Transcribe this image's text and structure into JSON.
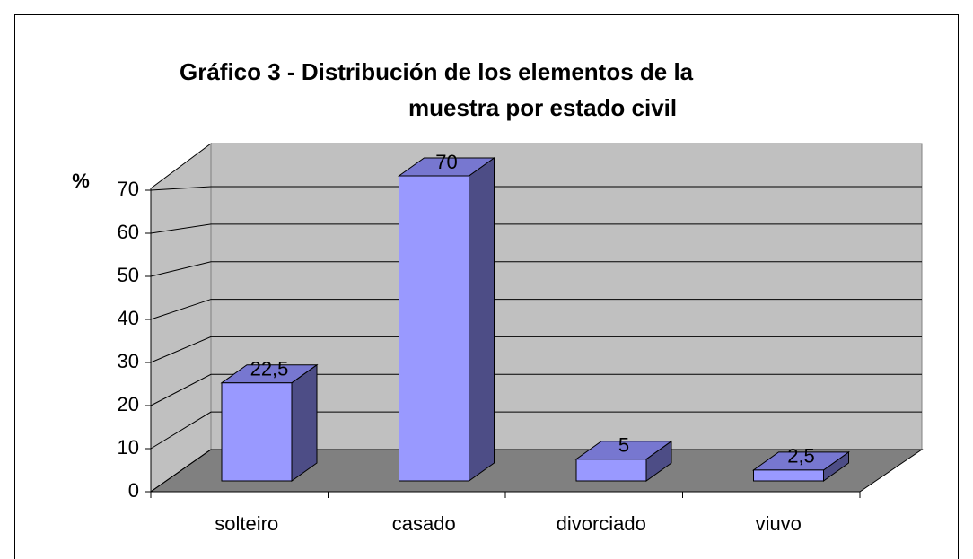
{
  "chart_data": {
    "type": "bar3d",
    "title": [
      "Gráfico  3 - Distribución de los elementos de la",
      "muestra por estado civil"
    ],
    "y_label": "%",
    "categories": [
      "solteiro",
      "casado",
      "divorciado",
      "viuvo"
    ],
    "values": [
      22.5,
      70,
      5,
      2.5
    ],
    "value_labels": [
      "22,5",
      "70",
      "5",
      "2,5"
    ],
    "color": "#9999ff",
    "ylim": [
      0,
      70
    ],
    "yticks": [
      0,
      10,
      20,
      30,
      40,
      50,
      60,
      70
    ],
    "grid": true
  }
}
